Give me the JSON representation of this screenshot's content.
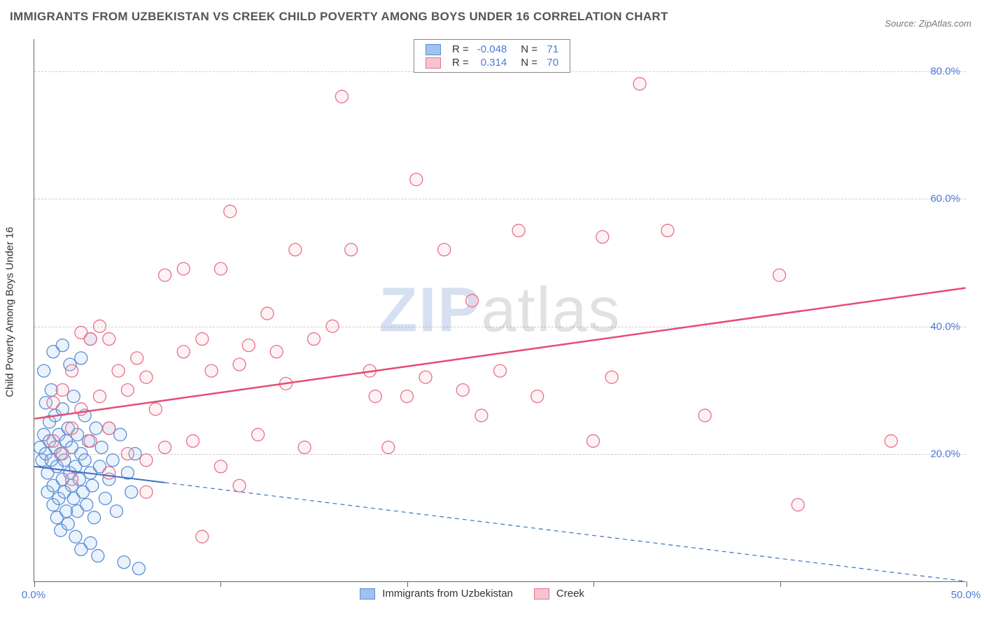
{
  "title": "IMMIGRANTS FROM UZBEKISTAN VS CREEK CHILD POVERTY AMONG BOYS UNDER 16 CORRELATION CHART",
  "source_label": "Source:",
  "source_name": "ZipAtlas.com",
  "ylabel": "Child Poverty Among Boys Under 16",
  "watermark_z": "ZIP",
  "watermark_rest": "atlas",
  "chart": {
    "type": "scatter",
    "xlim": [
      0,
      50
    ],
    "ylim": [
      0,
      85
    ],
    "x_ticks": [
      0,
      10,
      20,
      30,
      40,
      50
    ],
    "x_tick_labels": [
      "0.0%",
      "",
      "",
      "",
      "",
      "50.0%"
    ],
    "y_gridlines": [
      20,
      40,
      60,
      80
    ],
    "y_tick_labels": [
      "20.0%",
      "40.0%",
      "60.0%",
      "80.0%"
    ],
    "grid_color": "#cccccc",
    "bg": "#ffffff",
    "marker_radius": 9,
    "series": [
      {
        "key": "s1",
        "name": "Immigrants from Uzbekistan",
        "R": "-0.048",
        "N": "71",
        "fill": "#9ec3ef",
        "stroke": "#5b8ed6",
        "trend": {
          "x1": 0,
          "y1": 18,
          "x2": 50,
          "y2": 0,
          "dashed_from_x": 7,
          "color": "#3f6fc2",
          "width": 2
        },
        "points": [
          [
            0.3,
            21
          ],
          [
            0.4,
            19
          ],
          [
            0.5,
            23
          ],
          [
            0.6,
            28
          ],
          [
            0.6,
            20
          ],
          [
            0.7,
            17
          ],
          [
            0.7,
            14
          ],
          [
            0.8,
            25
          ],
          [
            0.8,
            22
          ],
          [
            0.9,
            19
          ],
          [
            0.9,
            30
          ],
          [
            1.0,
            15
          ],
          [
            1.0,
            12
          ],
          [
            1.1,
            21
          ],
          [
            1.1,
            26
          ],
          [
            1.2,
            18
          ],
          [
            1.2,
            10
          ],
          [
            1.3,
            23
          ],
          [
            1.3,
            13
          ],
          [
            1.4,
            20
          ],
          [
            1.4,
            8
          ],
          [
            1.5,
            16
          ],
          [
            1.5,
            27
          ],
          [
            1.6,
            14
          ],
          [
            1.6,
            19
          ],
          [
            1.7,
            11
          ],
          [
            1.7,
            22
          ],
          [
            1.8,
            24
          ],
          [
            1.8,
            9
          ],
          [
            1.9,
            17
          ],
          [
            1.9,
            34
          ],
          [
            2.0,
            15
          ],
          [
            2.0,
            21
          ],
          [
            2.1,
            13
          ],
          [
            2.1,
            29
          ],
          [
            2.2,
            18
          ],
          [
            2.2,
            7
          ],
          [
            2.3,
            23
          ],
          [
            2.3,
            11
          ],
          [
            2.4,
            16
          ],
          [
            2.5,
            20
          ],
          [
            2.5,
            35
          ],
          [
            2.6,
            14
          ],
          [
            2.7,
            19
          ],
          [
            2.7,
            26
          ],
          [
            2.8,
            12
          ],
          [
            2.9,
            22
          ],
          [
            3.0,
            17
          ],
          [
            3.0,
            38
          ],
          [
            3.1,
            15
          ],
          [
            3.2,
            10
          ],
          [
            3.3,
            24
          ],
          [
            3.4,
            4
          ],
          [
            3.5,
            18
          ],
          [
            3.6,
            21
          ],
          [
            3.8,
            13
          ],
          [
            4.0,
            16
          ],
          [
            4.2,
            19
          ],
          [
            4.4,
            11
          ],
          [
            4.6,
            23
          ],
          [
            4.8,
            3
          ],
          [
            5.0,
            17
          ],
          [
            5.2,
            14
          ],
          [
            5.4,
            20
          ],
          [
            5.6,
            2
          ],
          [
            4.0,
            24
          ],
          [
            3.0,
            6
          ],
          [
            2.5,
            5
          ],
          [
            1.5,
            37
          ],
          [
            1.0,
            36
          ],
          [
            0.5,
            33
          ]
        ]
      },
      {
        "key": "s2",
        "name": "Creek",
        "R": "0.314",
        "N": "70",
        "fill": "#f6c4ce",
        "stroke": "#e7718c",
        "trend": {
          "x1": 0,
          "y1": 25.5,
          "x2": 50,
          "y2": 46,
          "dashed_from_x": 50,
          "color": "#e54d73",
          "width": 2.5
        },
        "points": [
          [
            1,
            22
          ],
          [
            1,
            28
          ],
          [
            1.5,
            20
          ],
          [
            1.5,
            30
          ],
          [
            2,
            24
          ],
          [
            2,
            33
          ],
          [
            2.5,
            27
          ],
          [
            2.5,
            39
          ],
          [
            3,
            22
          ],
          [
            3,
            38
          ],
          [
            3.5,
            29
          ],
          [
            3.5,
            40
          ],
          [
            4,
            24
          ],
          [
            4,
            38
          ],
          [
            4.5,
            33
          ],
          [
            5,
            20
          ],
          [
            5,
            30
          ],
          [
            5.5,
            35
          ],
          [
            6,
            19
          ],
          [
            6,
            32
          ],
          [
            6.5,
            27
          ],
          [
            7,
            48
          ],
          [
            7,
            21
          ],
          [
            8,
            36
          ],
          [
            8,
            49
          ],
          [
            8.5,
            22
          ],
          [
            9,
            38
          ],
          [
            9.5,
            33
          ],
          [
            10,
            49
          ],
          [
            10,
            18
          ],
          [
            10.5,
            58
          ],
          [
            11,
            34
          ],
          [
            11.5,
            37
          ],
          [
            12,
            23
          ],
          [
            12.5,
            42
          ],
          [
            13,
            36
          ],
          [
            13.5,
            31
          ],
          [
            14,
            52
          ],
          [
            14.5,
            21
          ],
          [
            15,
            38
          ],
          [
            16,
            40
          ],
          [
            16.5,
            76
          ],
          [
            17,
            52
          ],
          [
            18,
            33
          ],
          [
            18.3,
            29
          ],
          [
            19,
            21
          ],
          [
            20,
            29
          ],
          [
            20.5,
            63
          ],
          [
            21,
            32
          ],
          [
            22,
            52
          ],
          [
            23,
            30
          ],
          [
            23.5,
            44
          ],
          [
            24,
            26
          ],
          [
            25,
            33
          ],
          [
            26,
            55
          ],
          [
            27,
            29
          ],
          [
            30,
            22
          ],
          [
            30.5,
            54
          ],
          [
            31,
            32
          ],
          [
            32.5,
            78
          ],
          [
            34,
            55
          ],
          [
            36,
            26
          ],
          [
            40,
            48
          ],
          [
            41,
            12
          ],
          [
            46,
            22
          ],
          [
            9,
            7
          ],
          [
            6,
            14
          ],
          [
            11,
            15
          ],
          [
            4,
            17
          ],
          [
            2,
            16
          ]
        ]
      }
    ]
  },
  "legend_top": {
    "R_label": "R =",
    "N_label": "N ="
  },
  "colors": {
    "axis_text": "#4a7bd8",
    "title": "#555555",
    "stat_value": "#4a7bd8"
  }
}
